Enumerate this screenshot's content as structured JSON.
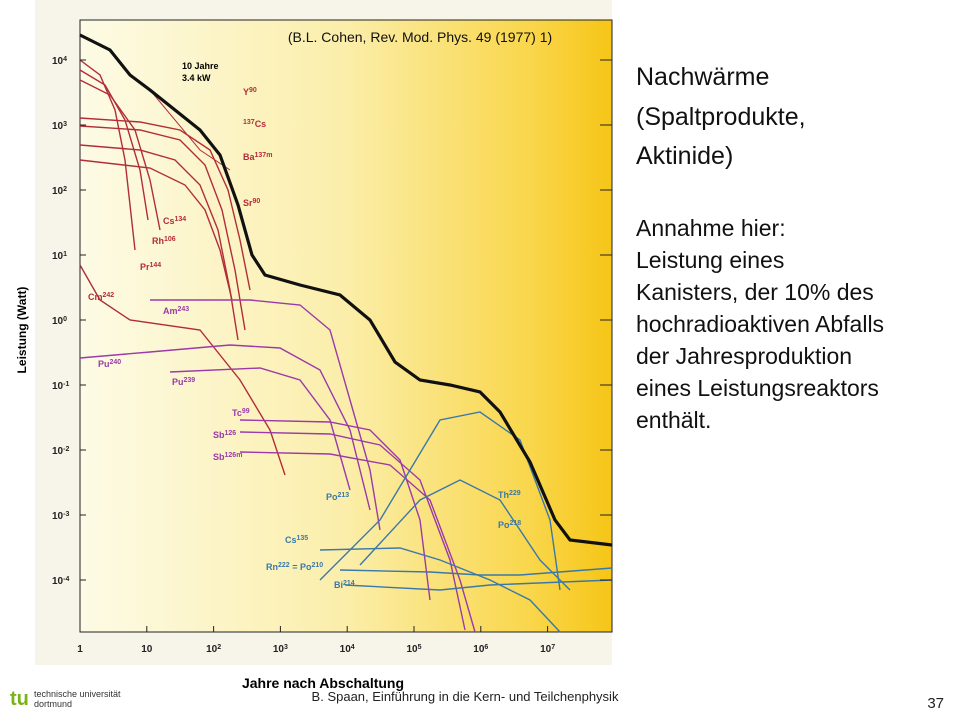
{
  "figure": {
    "citation": "(B.L. Cohen, Rev. Mod. Phys. 49  (1977) 1)",
    "y_axis_label": "Leistung (Watt)",
    "x_axis_label": "Jahre nach Abschaltung",
    "x_ticks": [
      {
        "base": "1"
      },
      {
        "base": "10"
      },
      {
        "base": "10",
        "exp": "2"
      },
      {
        "base": "10",
        "exp": "3"
      },
      {
        "base": "10",
        "exp": "4"
      },
      {
        "base": "10",
        "exp": "5"
      },
      {
        "base": "10",
        "exp": "6"
      },
      {
        "base": "10",
        "exp": "7"
      }
    ],
    "y_ticks": [
      {
        "base": "10",
        "exp": "4"
      },
      {
        "base": "10",
        "exp": "3"
      },
      {
        "base": "10",
        "exp": "2"
      },
      {
        "base": "10",
        "exp": "1"
      },
      {
        "base": "10",
        "exp": "0"
      },
      {
        "base": "10",
        "exp": "-1"
      },
      {
        "base": "10",
        "exp": "-2"
      },
      {
        "base": "10",
        "exp": "-3"
      },
      {
        "base": "10",
        "exp": "-4"
      }
    ],
    "annotation": [
      "10 Jahre",
      "3.4 kW"
    ],
    "curve_labels": [
      {
        "symbol": "Y",
        "mass": "90"
      },
      {
        "symbol": "Cs",
        "mass": "137"
      },
      {
        "symbol": "Ba",
        "mass": "137m"
      },
      {
        "symbol": "Sr",
        "mass": "90"
      },
      {
        "symbol": "Cs",
        "mass": "134"
      },
      {
        "symbol": "Rh",
        "mass": "106"
      },
      {
        "symbol": "Pr",
        "mass": "144"
      },
      {
        "symbol": "Cm",
        "mass": "242"
      },
      {
        "symbol": "Am",
        "mass": "243"
      },
      {
        "symbol": "Pu",
        "mass": "240"
      },
      {
        "symbol": "Pu",
        "mass": "239"
      },
      {
        "symbol": "Tc",
        "mass": "99"
      },
      {
        "symbol": "Sb",
        "mass": "126"
      },
      {
        "symbol": "Sb",
        "mass": "126m"
      },
      {
        "symbol": "Po",
        "mass": "213"
      },
      {
        "symbol": "Th",
        "mass": "229"
      },
      {
        "symbol": "Po",
        "mass": "218"
      },
      {
        "symbol": "Cs",
        "mass": "135"
      },
      {
        "symbol": "Rn",
        "mass": "222",
        "symbol2": " = Po",
        "mass2": "210"
      },
      {
        "symbol": "Bi",
        "mass": "214"
      }
    ]
  },
  "slide": {
    "title": [
      "Nachwärme",
      "(Spaltprodukte,",
      "Aktinide)"
    ],
    "body": [
      "Annahme hier:",
      "Leistung eines",
      "Kanisters, der 10% des",
      "hochradioaktiven Abfalls",
      "der Jahresproduktion",
      "eines Leistungsreaktors",
      "enthält."
    ]
  },
  "footer": {
    "university": [
      "technische universität",
      "dortmund"
    ],
    "logo": "tu",
    "course": "B. Spaan, Einführung in die Kern- und Teilchenphysik",
    "page": "37"
  }
}
